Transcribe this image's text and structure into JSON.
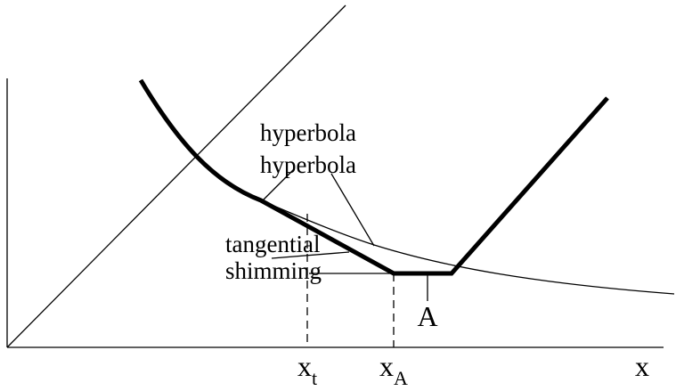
{
  "annotations": [
    "hyperbola",
    "hyperbola",
    "tangential",
    "shimming",
    "A"
  ],
  "axis_labels": [
    {
      "base": "x",
      "sub": "t"
    },
    {
      "base": "x",
      "sub": "A"
    }
  ],
  "axis_name": "x"
}
